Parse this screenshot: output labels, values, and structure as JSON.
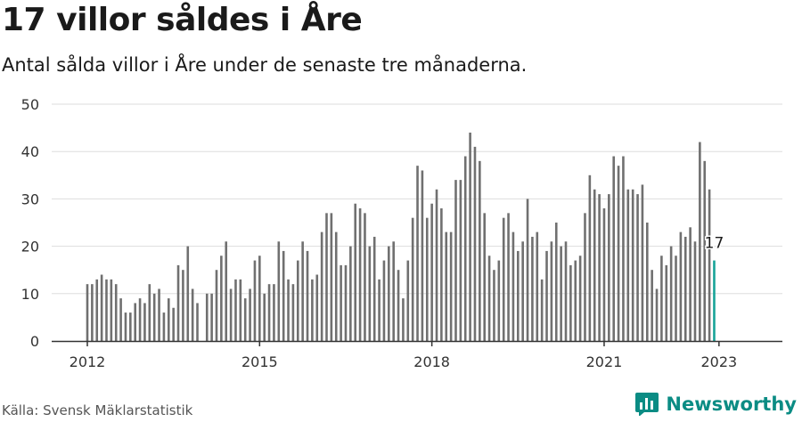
{
  "title": "17 villor såldes i Åre",
  "subtitle": "Antal sålda villor i Åre under de senaste tre månaderna.",
  "source": "Källa: Svensk Mäklarstatistik",
  "brand": "Newsworthy",
  "colors": {
    "bar": "#707070",
    "highlight": "#17a398",
    "grid": "#dddddd",
    "axis": "#333333",
    "brand": "#0b8c84"
  },
  "chart_data": {
    "type": "bar",
    "x_start": "2012-01",
    "x_ticks": [
      "2012",
      "2015",
      "2018",
      "2021",
      "2023"
    ],
    "ylim": [
      0,
      50
    ],
    "y_ticks": [
      0,
      10,
      20,
      30,
      40,
      50
    ],
    "grid": true,
    "highlight_label": "17",
    "values": [
      12,
      12,
      13,
      14,
      13,
      13,
      12,
      9,
      6,
      6,
      8,
      9,
      8,
      12,
      10,
      11,
      6,
      9,
      7,
      16,
      15,
      20,
      11,
      8,
      null,
      10,
      10,
      15,
      18,
      21,
      11,
      13,
      13,
      9,
      11,
      17,
      18,
      10,
      12,
      12,
      21,
      19,
      13,
      12,
      17,
      21,
      19,
      13,
      14,
      23,
      27,
      27,
      23,
      16,
      16,
      20,
      29,
      28,
      27,
      20,
      22,
      13,
      17,
      20,
      21,
      15,
      9,
      17,
      26,
      37,
      36,
      26,
      29,
      32,
      28,
      23,
      23,
      34,
      34,
      39,
      44,
      41,
      38,
      27,
      18,
      15,
      17,
      26,
      27,
      23,
      19,
      21,
      30,
      22,
      23,
      13,
      19,
      21,
      25,
      20,
      21,
      16,
      17,
      18,
      27,
      35,
      32,
      31,
      28,
      31,
      39,
      37,
      39,
      32,
      32,
      31,
      33,
      25,
      15,
      11,
      18,
      16,
      20,
      18,
      23,
      22,
      24,
      21,
      42,
      38,
      32,
      17
    ]
  }
}
